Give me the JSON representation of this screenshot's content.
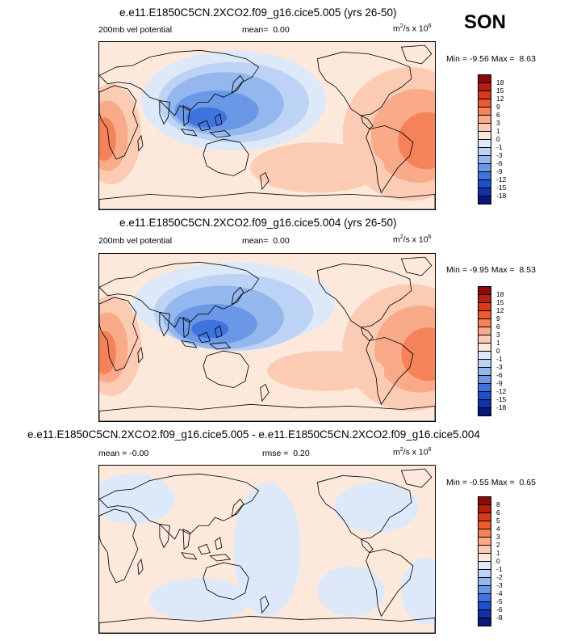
{
  "season": "SON",
  "panels": [
    {
      "id": "p1",
      "title": "e.e11.E1850C5CN.2XCO2.f09_g16.cice5.005 (yrs 26-50)",
      "left_label": "200mb vel potential",
      "mean_label": "mean=",
      "mean_value": "0.00",
      "units_base": "m",
      "units_sup": "2",
      "units_mid": "/s x 10",
      "units_exp": "6",
      "min_label": "Min =",
      "min_value": "-9.56",
      "max_label": "Max =",
      "max_value": "8.63",
      "levels": [
        "18",
        "15",
        "12",
        "9",
        "6",
        "3",
        "1",
        "0",
        "-1",
        "-3",
        "-6",
        "-9",
        "-12",
        "-15",
        "-18"
      ]
    },
    {
      "id": "p2",
      "title": "e.e11.E1850C5CN.2XCO2.f09_g16.cice5.004 (yrs 26-50)",
      "left_label": "200mb vel potential",
      "mean_label": "mean=",
      "mean_value": "0.00",
      "units_base": "m",
      "units_sup": "2",
      "units_mid": "/s x 10",
      "units_exp": "6",
      "min_label": "Min =",
      "min_value": "-9.95",
      "max_label": "Max =",
      "max_value": "8.53",
      "levels": [
        "18",
        "15",
        "12",
        "9",
        "6",
        "3",
        "1",
        "0",
        "-1",
        "-3",
        "-6",
        "-9",
        "-12",
        "-15",
        "-18"
      ]
    },
    {
      "id": "p3",
      "title": "e.e11.E1850C5CN.2XCO2.f09_g16.cice5.005 - e.e11.E1850C5CN.2XCO2.f09_g16.cice5.004",
      "left_label": "mean = -0.00",
      "rmse_label": "rmse =",
      "rmse_value": "0.20",
      "units_base": "m",
      "units_sup": "2",
      "units_mid": "/s x 10",
      "units_exp": "6",
      "min_label": "Min =",
      "min_value": "-0.55",
      "max_label": "Max =",
      "max_value": "0.65",
      "levels": [
        "8",
        "6",
        "5",
        "4",
        "3",
        "2",
        "1",
        "0",
        "-1",
        "-2",
        "-3",
        "-4",
        "-5",
        "-6",
        "-8"
      ]
    }
  ],
  "colors": {
    "palette": [
      "#8c0a0a",
      "#b81e10",
      "#d93a1b",
      "#ee5a2f",
      "#f58258",
      "#f9aa88",
      "#fccbb4",
      "#fde9dc",
      "#dde9f9",
      "#bcd3f5",
      "#94b7ee",
      "#6a98e6",
      "#3f74de",
      "#1e4fcf",
      "#1230a8",
      "#0a1878"
    ],
    "land_outline": "#000000"
  },
  "chart_data": [
    {
      "type": "heatmap",
      "title": "e.e11.E1850C5CN.2XCO2.f09_g16.cice5.005 (yrs 26-50)",
      "field": "200mb vel potential",
      "units": "m2/s x 10^6",
      "mean": 0.0,
      "min": -9.56,
      "max": 8.63,
      "contour_levels": [
        -18,
        -15,
        -12,
        -9,
        -6,
        -3,
        -1,
        0,
        1,
        3,
        6,
        9,
        12,
        15,
        18
      ],
      "pattern": "negative (blue) over the Maritime Continent / western Pacific; positive (red) over Africa and the Atlantic / South America"
    },
    {
      "type": "heatmap",
      "title": "e.e11.E1850C5CN.2XCO2.f09_g16.cice5.004 (yrs 26-50)",
      "field": "200mb vel potential",
      "units": "m2/s x 10^6",
      "mean": 0.0,
      "min": -9.95,
      "max": 8.53,
      "contour_levels": [
        -18,
        -15,
        -12,
        -9,
        -6,
        -3,
        -1,
        0,
        1,
        3,
        6,
        9,
        12,
        15,
        18
      ],
      "pattern": "negative (blue) over the Maritime Continent / western Pacific; positive (red) over Africa and the Atlantic / South America"
    },
    {
      "type": "heatmap",
      "title": "e.e11.E1850C5CN.2XCO2.f09_g16.cice5.005 - e.e11.E1850C5CN.2XCO2.f09_g16.cice5.004",
      "field": "difference",
      "units": "m2/s x 10^6",
      "mean": -0.0,
      "rmse": 0.2,
      "min": -0.55,
      "max": 0.65,
      "contour_levels": [
        -8,
        -6,
        -5,
        -4,
        -3,
        -2,
        -1,
        0,
        1,
        2,
        3,
        4,
        5,
        6,
        8
      ],
      "pattern": "weak differences, mostly between -1 and 1"
    }
  ]
}
